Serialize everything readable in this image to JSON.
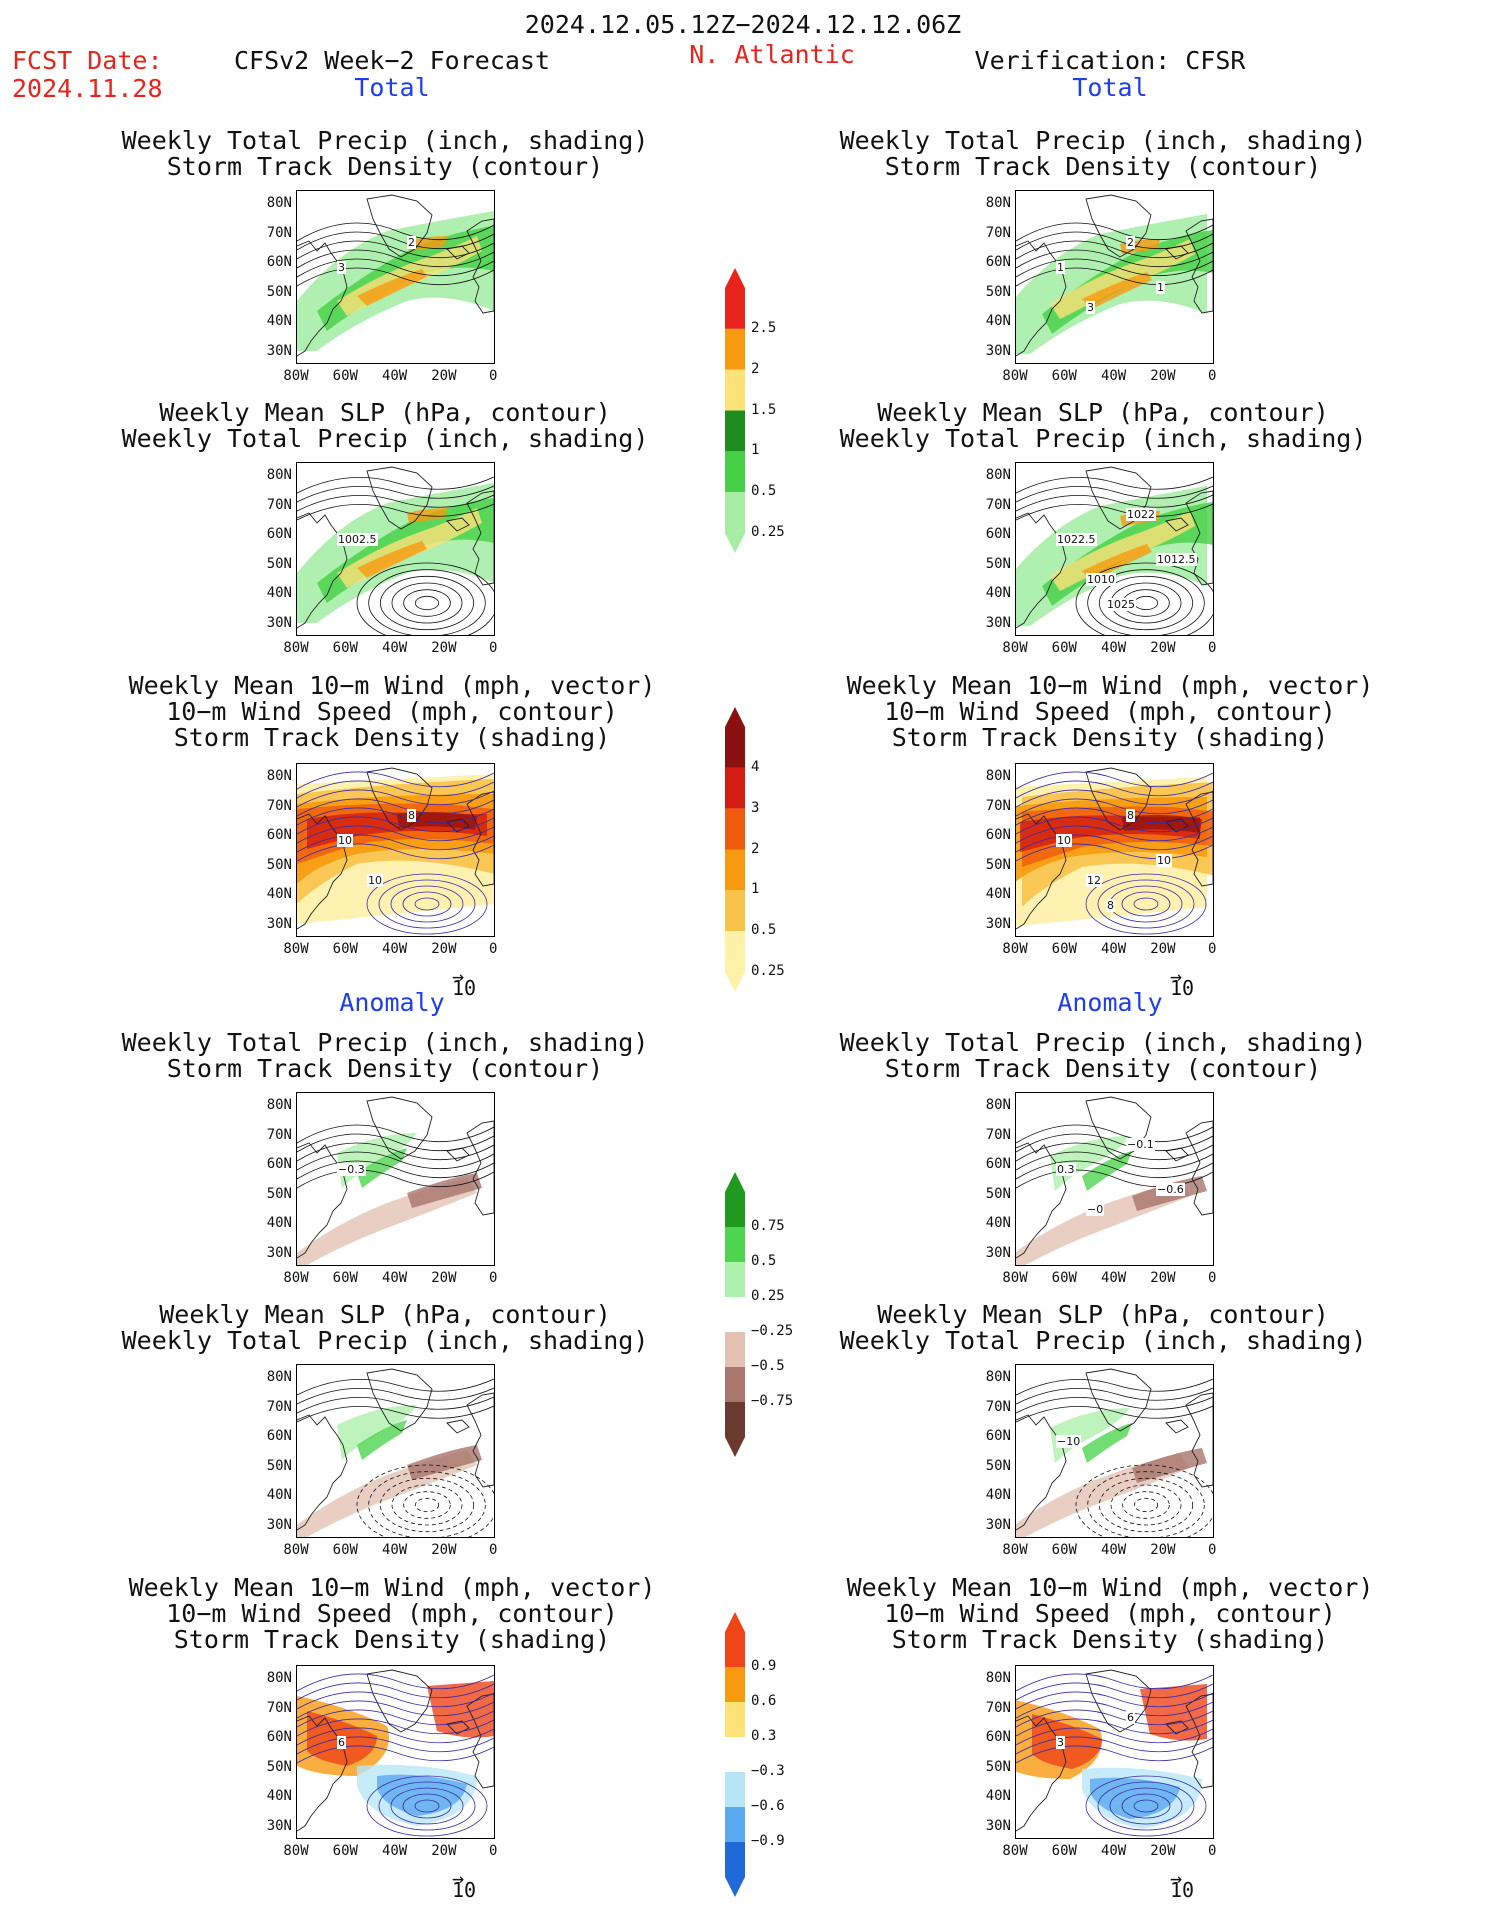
{
  "header": {
    "period": "2024.12.05.12Z−2024.12.12.06Z",
    "fcst_label": "FCST Date:",
    "fcst_date": "2024.11.28",
    "model": "CFSv2 Week−2 Forecast",
    "region": "N. Atlantic",
    "verification": "Verification: CFSR"
  },
  "sections": {
    "total": "Total",
    "anomaly": "Anomaly"
  },
  "titles": {
    "precip_storm": [
      "Weekly Total Precip (inch, shading)",
      "Storm Track Density (contour)"
    ],
    "slp_precip": [
      "Weekly Mean SLP (hPa, contour)",
      "Weekly Total Precip (inch, shading)"
    ],
    "wind_storm": [
      "Weekly Mean 10−m Wind (mph, vector)",
      "10−m Wind Speed (mph, contour)",
      "Storm Track Density (shading)"
    ]
  },
  "axes": {
    "lat_ticks": [
      "80N",
      "70N",
      "60N",
      "50N",
      "40N",
      "30N"
    ],
    "lon_ticks": [
      "80W",
      "60W",
      "40W",
      "20W",
      "0"
    ]
  },
  "vector_ref": "10",
  "colorbars": {
    "precip_total": {
      "labels": [
        "2.5",
        "2",
        "1.5",
        "1",
        "0.5",
        "0.25"
      ],
      "colors": [
        "#e8231c",
        "#f79a0f",
        "#fde27a",
        "#1f8c1f",
        "#45d045",
        "#a6eda6"
      ]
    },
    "storm_total": {
      "labels": [
        "4",
        "3",
        "2",
        "1",
        "0.5",
        "0.25"
      ],
      "colors": [
        "#8b1010",
        "#d21b12",
        "#f05a0d",
        "#f79a0f",
        "#f9c24a",
        "#fff1a8"
      ]
    },
    "precip_anom": {
      "labels": [
        "0.75",
        "0.5",
        "0.25",
        "−0.25",
        "−0.5",
        "−0.75"
      ],
      "colors": [
        "#1f9a1f",
        "#4fd44f",
        "#aef0ae",
        "#ffffff",
        "#e3c2b4",
        "#a8766a",
        "#6b3a2e"
      ]
    },
    "storm_anom": {
      "labels": [
        "0.9",
        "0.6",
        "0.3",
        "−0.3",
        "−0.6",
        "−0.9"
      ],
      "colors": [
        "#ee4418",
        "#f79a0f",
        "#fde27a",
        "#ffffff",
        "#b8e6f7",
        "#5aaaf0",
        "#1f6ad8"
      ]
    }
  },
  "contour_labels": {
    "fc_total_precip": [
      "3",
      "2"
    ],
    "vf_total_precip": [
      "1",
      "2",
      "3",
      "1"
    ],
    "fc_total_slp": [
      "1002.5"
    ],
    "vf_total_slp": [
      "1022.5",
      "1022",
      "1010",
      "1012.5",
      "1025"
    ],
    "fc_total_wind": [
      "10",
      "8",
      "10"
    ],
    "vf_total_wind": [
      "10",
      "8",
      "12",
      "10",
      "8"
    ],
    "fc_anom_precip": [
      "−0.3"
    ],
    "vf_anom_precip": [
      "0.3",
      "−0.1",
      "−0",
      "−0.6"
    ],
    "vf_anom_slp": [
      "−10"
    ],
    "fc_anom_wind": [
      "6"
    ],
    "vf_anom_wind": [
      "3",
      "6"
    ]
  }
}
